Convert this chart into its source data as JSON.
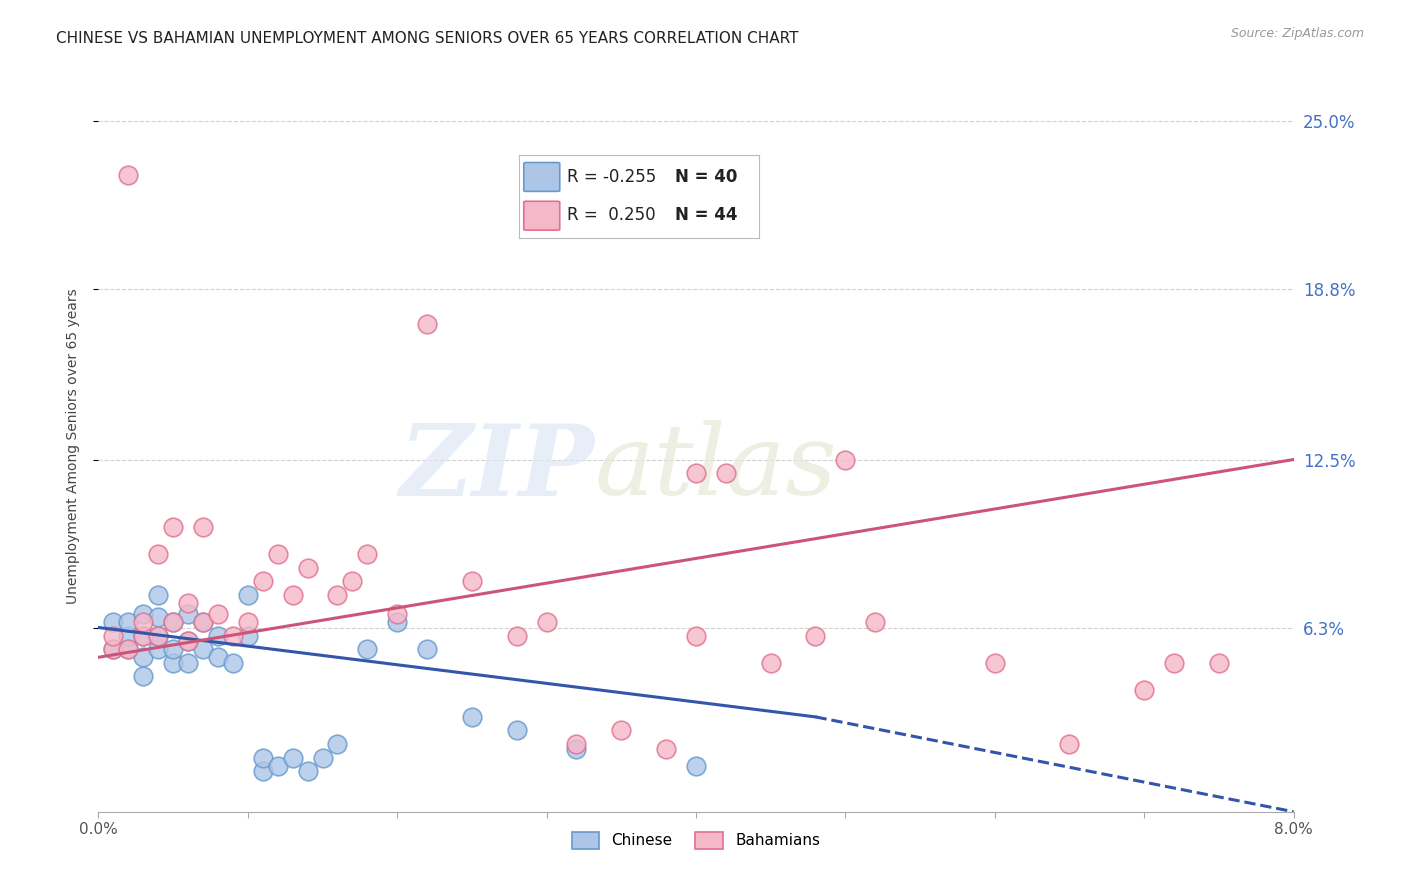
{
  "title": "CHINESE VS BAHAMIAN UNEMPLOYMENT AMONG SENIORS OVER 65 YEARS CORRELATION CHART",
  "source": "Source: ZipAtlas.com",
  "ylabel": "Unemployment Among Seniors over 65 years",
  "xlim": [
    0.0,
    0.08
  ],
  "ylim": [
    -0.005,
    0.265
  ],
  "xticks": [
    0.0,
    0.01,
    0.02,
    0.03,
    0.04,
    0.05,
    0.06,
    0.07,
    0.08
  ],
  "xtick_labels": [
    "0.0%",
    "",
    "",
    "",
    "",
    "",
    "",
    "",
    "8.0%"
  ],
  "ytick_vals": [
    0.063,
    0.125,
    0.188,
    0.25
  ],
  "ytick_labels": [
    "6.3%",
    "12.5%",
    "18.8%",
    "25.0%"
  ],
  "chinese_color": "#adc6e8",
  "bahamian_color": "#f5b8c8",
  "chinese_edge": "#6699cc",
  "bahamian_edge": "#e07090",
  "trend_chinese_color": "#3355aa",
  "trend_bahamian_color": "#cc5577",
  "background_color": "#ffffff",
  "grid_color": "#cccccc",
  "chinese_x": [
    0.001,
    0.001,
    0.002,
    0.002,
    0.002,
    0.003,
    0.003,
    0.003,
    0.003,
    0.004,
    0.004,
    0.004,
    0.004,
    0.005,
    0.005,
    0.005,
    0.006,
    0.006,
    0.006,
    0.007,
    0.007,
    0.008,
    0.008,
    0.009,
    0.01,
    0.01,
    0.011,
    0.011,
    0.012,
    0.013,
    0.014,
    0.015,
    0.016,
    0.018,
    0.02,
    0.022,
    0.025,
    0.028,
    0.032,
    0.04
  ],
  "chinese_y": [
    0.055,
    0.065,
    0.055,
    0.06,
    0.065,
    0.045,
    0.052,
    0.06,
    0.068,
    0.055,
    0.06,
    0.067,
    0.075,
    0.05,
    0.055,
    0.065,
    0.05,
    0.058,
    0.068,
    0.055,
    0.065,
    0.052,
    0.06,
    0.05,
    0.06,
    0.075,
    0.01,
    0.015,
    0.012,
    0.015,
    0.01,
    0.015,
    0.02,
    0.055,
    0.065,
    0.055,
    0.03,
    0.025,
    0.018,
    0.012
  ],
  "bahamian_x": [
    0.001,
    0.001,
    0.002,
    0.002,
    0.003,
    0.003,
    0.004,
    0.004,
    0.005,
    0.005,
    0.006,
    0.006,
    0.007,
    0.007,
    0.008,
    0.009,
    0.01,
    0.011,
    0.012,
    0.013,
    0.014,
    0.016,
    0.017,
    0.018,
    0.02,
    0.022,
    0.025,
    0.028,
    0.03,
    0.032,
    0.035,
    0.038,
    0.04,
    0.04,
    0.042,
    0.045,
    0.048,
    0.05,
    0.052,
    0.06,
    0.065,
    0.07,
    0.072,
    0.075
  ],
  "bahamian_y": [
    0.055,
    0.06,
    0.055,
    0.23,
    0.06,
    0.065,
    0.06,
    0.09,
    0.065,
    0.1,
    0.058,
    0.072,
    0.065,
    0.1,
    0.068,
    0.06,
    0.065,
    0.08,
    0.09,
    0.075,
    0.085,
    0.075,
    0.08,
    0.09,
    0.068,
    0.175,
    0.08,
    0.06,
    0.065,
    0.02,
    0.025,
    0.018,
    0.06,
    0.12,
    0.12,
    0.05,
    0.06,
    0.125,
    0.065,
    0.05,
    0.02,
    0.04,
    0.05,
    0.05
  ],
  "trend_chinese_x0": 0.0,
  "trend_chinese_y0": 0.063,
  "trend_chinese_x1": 0.048,
  "trend_chinese_y1": 0.03,
  "trend_chinese_dash_x0": 0.048,
  "trend_chinese_dash_y0": 0.03,
  "trend_chinese_dash_x1": 0.08,
  "trend_chinese_dash_y1": -0.005,
  "trend_bahamian_x0": 0.0,
  "trend_bahamian_y0": 0.052,
  "trend_bahamian_x1": 0.08,
  "trend_bahamian_y1": 0.125,
  "title_fontsize": 11,
  "label_fontsize": 10,
  "tick_fontsize": 11,
  "right_tick_color": "#4472c4"
}
